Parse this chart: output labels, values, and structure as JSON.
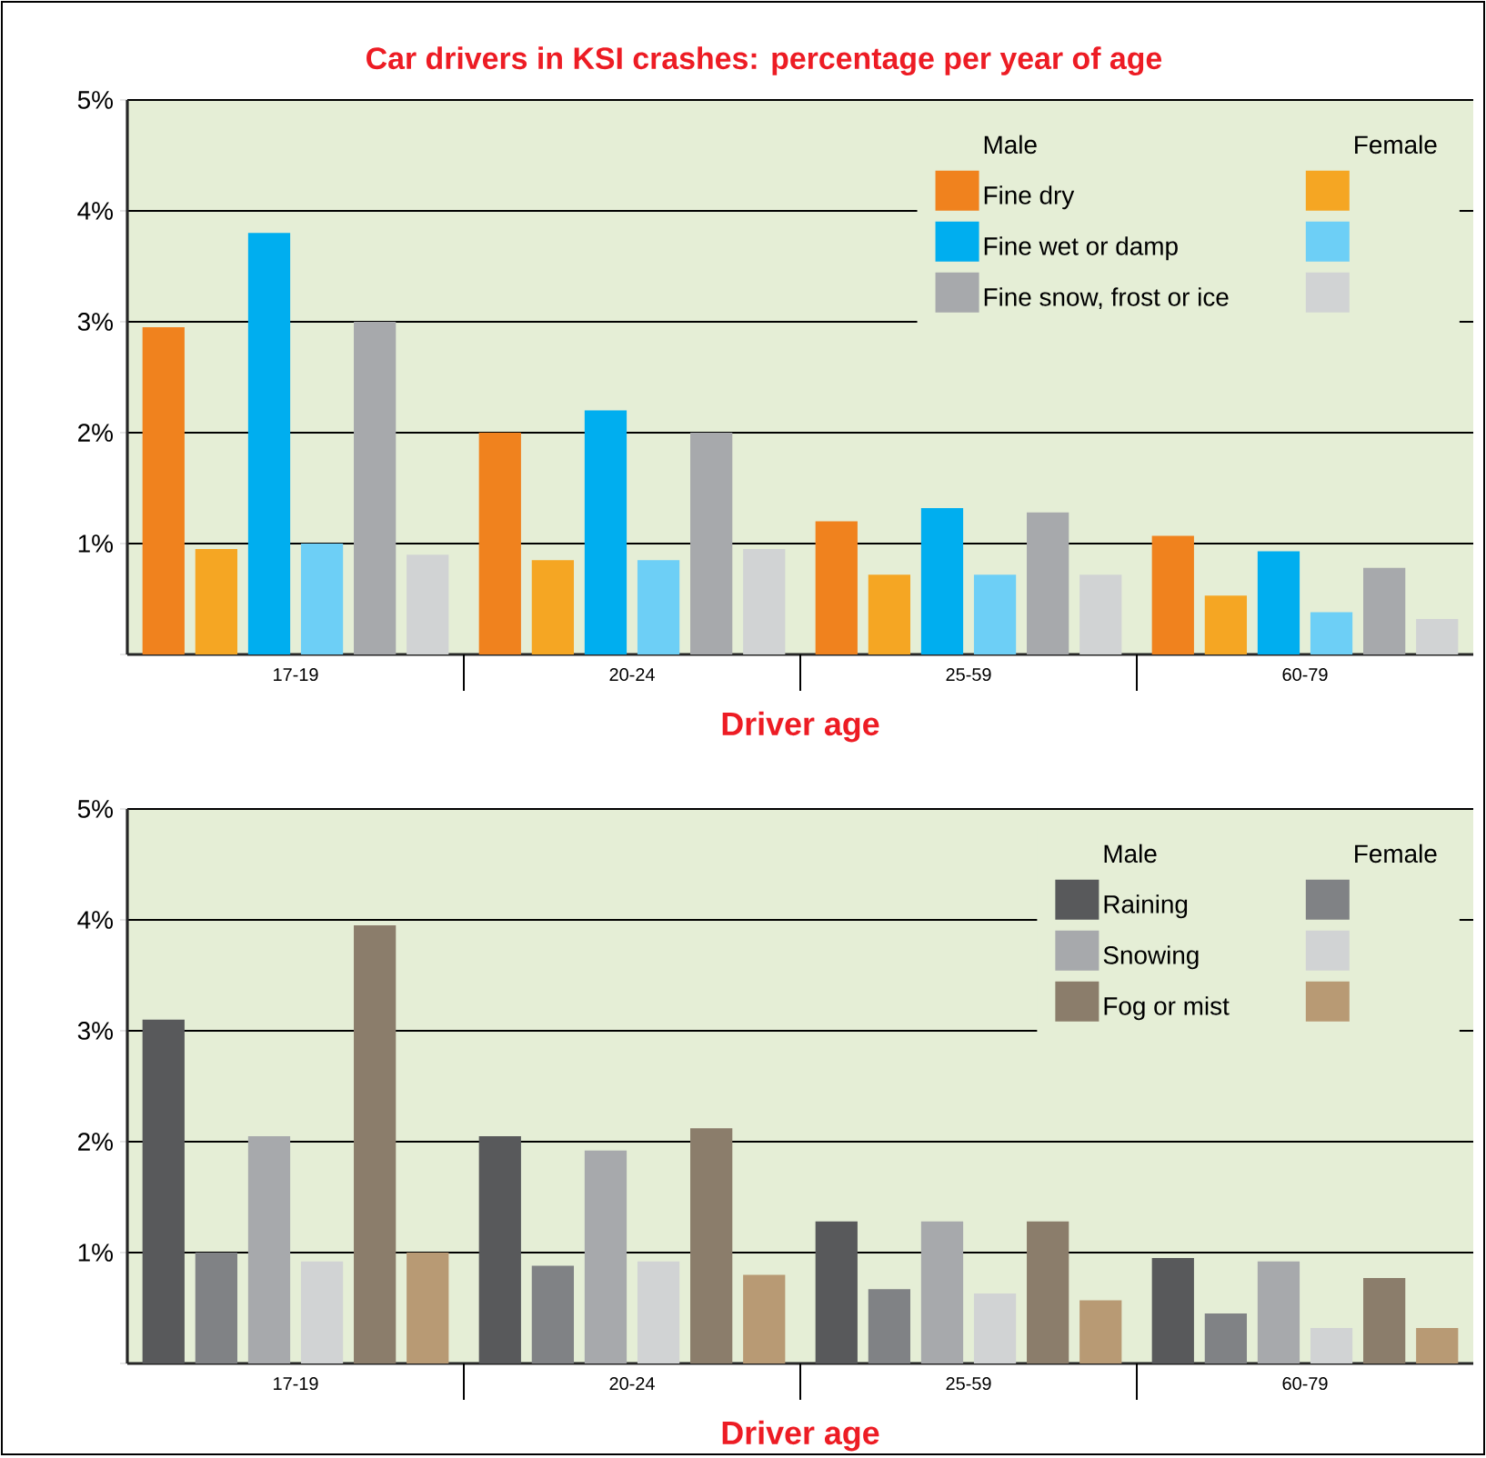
{
  "chart_data": [
    {
      "type": "bar",
      "title": "Car drivers in KSI crashes: percentage per year of age",
      "xlabel": "Driver age",
      "categories": [
        "17-19",
        "20-24",
        "25-59",
        "60-79"
      ],
      "series": [
        {
          "name": "Fine dry",
          "color": "#f0821e",
          "values": [
            2.95,
            2.0,
            1.2,
            1.07
          ]
        },
        {
          "color": "#f5a623",
          "values": [
            0.95,
            0.85,
            0.72,
            0.53
          ]
        },
        {
          "name": "Fine wet or damp",
          "color": "#00aeef",
          "values": [
            3.8,
            2.2,
            1.32,
            0.93
          ]
        },
        {
          "color": "#6dcff6",
          "values": [
            1.0,
            0.85,
            0.72,
            0.38
          ]
        },
        {
          "name": "Fine snow, frost or ice",
          "color": "#a7a9ac",
          "values": [
            3.0,
            2.0,
            1.28,
            0.78
          ]
        },
        {
          "color": "#d1d3d4",
          "values": [
            0.9,
            0.95,
            0.72,
            0.32
          ]
        }
      ],
      "ylim": [
        0,
        5
      ],
      "yticks": [
        {
          "value": 0,
          "label": null
        },
        {
          "value": 1,
          "label": "1%"
        },
        {
          "value": 2,
          "label": "2%"
        },
        {
          "value": 3,
          "label": "3%"
        },
        {
          "value": 4,
          "label": "4%"
        },
        {
          "value": 5,
          "label": "5%"
        }
      ],
      "grid": "y",
      "legend": "top right",
      "annotations": [
        "Male",
        "Female"
      ]
    },
    {
      "type": "bar",
      "xlabel": "Driver age",
      "categories": [
        "17-19",
        "20-24",
        "25-59",
        "60-79"
      ],
      "series": [
        {
          "name": "Raining",
          "color": "#58595b",
          "values": [
            3.1,
            2.05,
            1.28,
            0.95
          ]
        },
        {
          "color": "#808285",
          "values": [
            1.0,
            0.88,
            0.67,
            0.45
          ]
        },
        {
          "name": "Snowing",
          "color": "#a7a9ac",
          "values": [
            2.05,
            1.92,
            1.28,
            0.92
          ]
        },
        {
          "color": "#d1d3d4",
          "values": [
            0.92,
            0.92,
            0.63,
            0.32
          ]
        },
        {
          "name": "Fog or mist",
          "color": "#8b7d6b",
          "values": [
            3.95,
            2.12,
            1.28,
            0.77
          ]
        },
        {
          "color": "#b89a74",
          "values": [
            1.0,
            0.8,
            0.57,
            0.32
          ]
        }
      ],
      "ylim": [
        0,
        5
      ],
      "yticks": [
        {
          "value": 0,
          "label": null
        },
        {
          "value": 1,
          "label": "1%"
        },
        {
          "value": 2,
          "label": "2%"
        },
        {
          "value": 3,
          "label": "3%"
        },
        {
          "value": 4,
          "label": "4%"
        },
        {
          "value": 5,
          "label": "5%"
        }
      ],
      "grid": "y",
      "legend": "top right",
      "annotations": [
        "Male",
        "Female"
      ]
    }
  ]
}
